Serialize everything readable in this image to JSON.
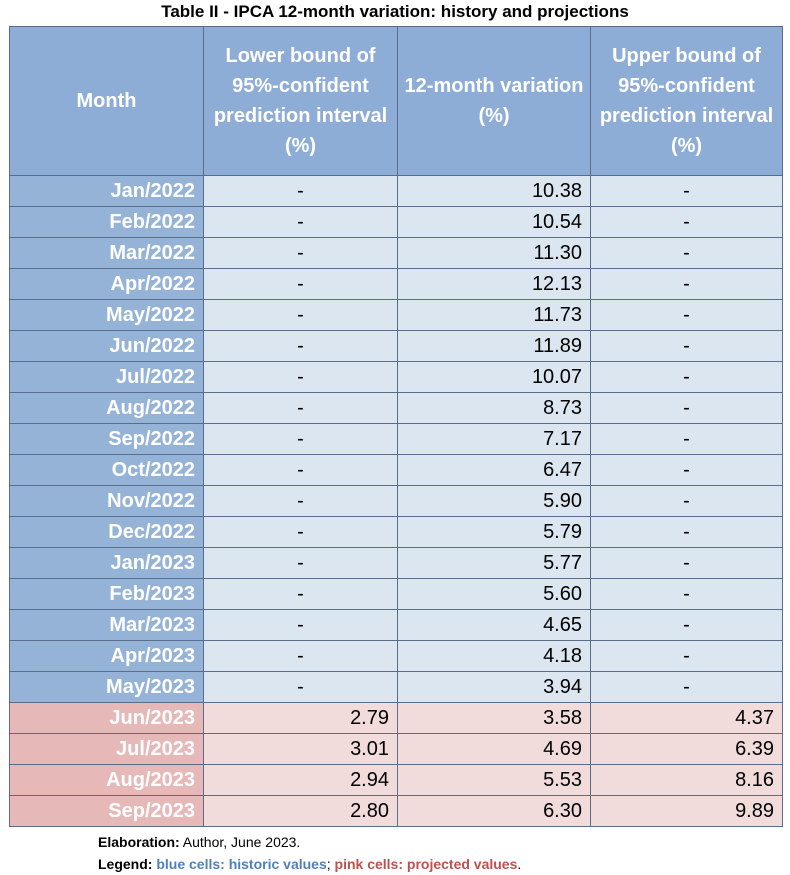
{
  "title": "Table II - IPCA 12-month variation: history and projections",
  "headers": [
    "Month",
    "Lower bound of 95%-confident prediction interval (%)",
    "12-month variation (%)",
    "Upper bound of 95%-confident prediction interval (%)"
  ],
  "rows": [
    {
      "month": "Jan/2022",
      "lower": "-",
      "value": "10.38",
      "upper": "-",
      "kind": "historic"
    },
    {
      "month": "Feb/2022",
      "lower": "-",
      "value": "10.54",
      "upper": "-",
      "kind": "historic"
    },
    {
      "month": "Mar/2022",
      "lower": "-",
      "value": "11.30",
      "upper": "-",
      "kind": "historic"
    },
    {
      "month": "Apr/2022",
      "lower": "-",
      "value": "12.13",
      "upper": "-",
      "kind": "historic"
    },
    {
      "month": "May/2022",
      "lower": "-",
      "value": "11.73",
      "upper": "-",
      "kind": "historic"
    },
    {
      "month": "Jun/2022",
      "lower": "-",
      "value": "11.89",
      "upper": "-",
      "kind": "historic"
    },
    {
      "month": "Jul/2022",
      "lower": "-",
      "value": "10.07",
      "upper": "-",
      "kind": "historic"
    },
    {
      "month": "Aug/2022",
      "lower": "-",
      "value": "8.73",
      "upper": "-",
      "kind": "historic"
    },
    {
      "month": "Sep/2022",
      "lower": "-",
      "value": "7.17",
      "upper": "-",
      "kind": "historic"
    },
    {
      "month": "Oct/2022",
      "lower": "-",
      "value": "6.47",
      "upper": "-",
      "kind": "historic"
    },
    {
      "month": "Nov/2022",
      "lower": "-",
      "value": "5.90",
      "upper": "-",
      "kind": "historic"
    },
    {
      "month": "Dec/2022",
      "lower": "-",
      "value": "5.79",
      "upper": "-",
      "kind": "historic"
    },
    {
      "month": "Jan/2023",
      "lower": "-",
      "value": "5.77",
      "upper": "-",
      "kind": "historic"
    },
    {
      "month": "Feb/2023",
      "lower": "-",
      "value": "5.60",
      "upper": "-",
      "kind": "historic"
    },
    {
      "month": "Mar/2023",
      "lower": "-",
      "value": "4.65",
      "upper": "-",
      "kind": "historic"
    },
    {
      "month": "Apr/2023",
      "lower": "-",
      "value": "4.18",
      "upper": "-",
      "kind": "historic"
    },
    {
      "month": "May/2023",
      "lower": "-",
      "value": "3.94",
      "upper": "-",
      "kind": "historic"
    },
    {
      "month": "Jun/2023",
      "lower": "2.79",
      "value": "3.58",
      "upper": "4.37",
      "kind": "projected"
    },
    {
      "month": "Jul/2023",
      "lower": "3.01",
      "value": "4.69",
      "upper": "6.39",
      "kind": "projected"
    },
    {
      "month": "Aug/2023",
      "lower": "2.94",
      "value": "5.53",
      "upper": "8.16",
      "kind": "projected"
    },
    {
      "month": "Sep/2023",
      "lower": "2.80",
      "value": "6.30",
      "upper": "9.89",
      "kind": "projected"
    }
  ],
  "elaboration": {
    "label": "Elaboration:",
    "text": " Author, June 2023."
  },
  "legend": {
    "label": "Legend:",
    "blue": "blue cells: historic values",
    "sep": ";",
    "pink": "pink cells: projected values",
    "end": "."
  },
  "colors": {
    "header": "#8eadd6",
    "historic_month": "#95b3d7",
    "historic_cell": "#dce6f1",
    "projected_month": "#e6b8b7",
    "projected_cell": "#f2dcdb"
  }
}
